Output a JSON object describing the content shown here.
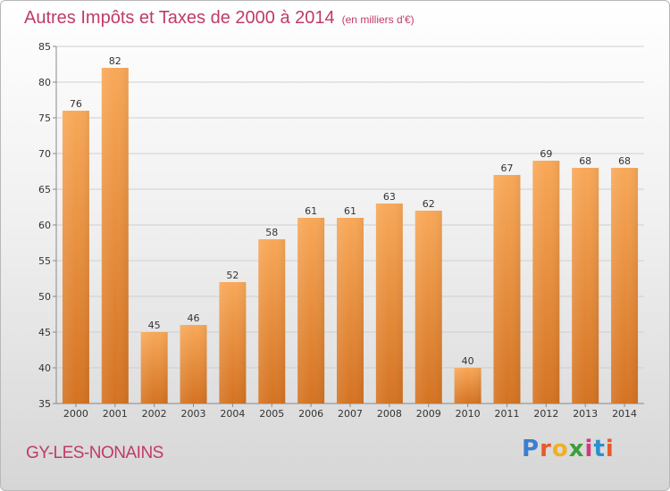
{
  "chart_data": {
    "type": "bar",
    "title": "Autres Impôts et Taxes de 2000 à 2014",
    "subtitle": "(en milliers d'€)",
    "categories": [
      "2000",
      "2001",
      "2002",
      "2003",
      "2004",
      "2005",
      "2006",
      "2007",
      "2008",
      "2009",
      "2010",
      "2011",
      "2012",
      "2013",
      "2014"
    ],
    "values": [
      76,
      82,
      45,
      46,
      52,
      58,
      61,
      61,
      63,
      62,
      40,
      67,
      69,
      68,
      68
    ],
    "ylim": [
      35,
      85
    ],
    "yticks": [
      35,
      40,
      45,
      50,
      55,
      60,
      65,
      70,
      75,
      80,
      85
    ],
    "grid": true,
    "bar_color": "#f0a050"
  },
  "footer": {
    "commune": "GY-LES-NONAINS",
    "logo_text": "Proxiti",
    "logo_colors": [
      "#3a7fd0",
      "#e85a2a",
      "#f0b020",
      "#3aa03a",
      "#d03a7a",
      "#2a90d0",
      "#e85a2a"
    ]
  }
}
